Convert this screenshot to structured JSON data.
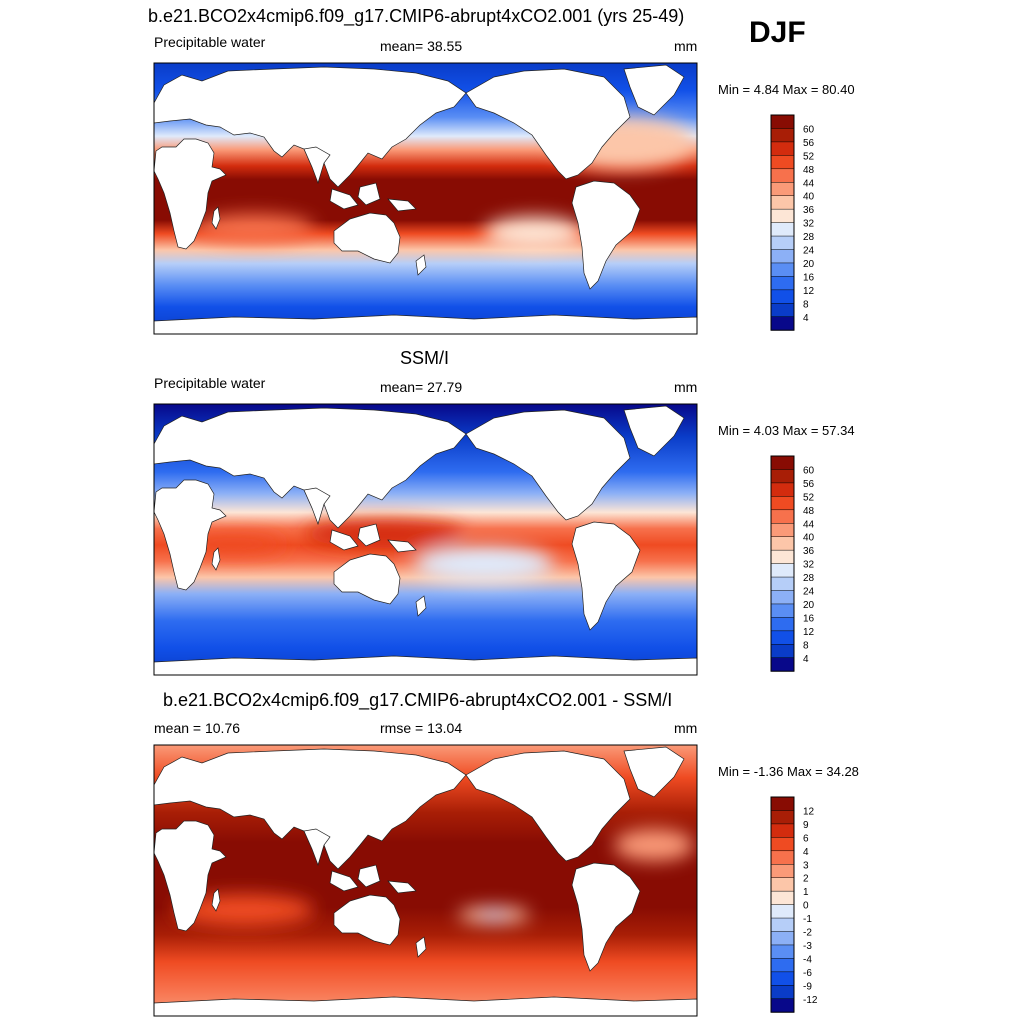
{
  "season": "DJF",
  "chart_data": [
    {
      "type": "heatmap",
      "title": "b.e21.BCO2x4cmip6.f09_g17.CMIP6-abrupt4xCO2.001 (yrs 25-49)",
      "left_label": "Precipitable water",
      "center_label": "mean=  38.55",
      "right_label": "mm",
      "minmax_label": "Min =   4.84 Max =  80.40",
      "mean": 38.55,
      "min": 4.84,
      "max": 80.4,
      "units": "mm",
      "colorbar": {
        "tick_labels": [
          "4",
          "8",
          "12",
          "16",
          "20",
          "24",
          "28",
          "32",
          "36",
          "40",
          "44",
          "48",
          "52",
          "56",
          "60"
        ],
        "colors": [
          "#08088a",
          "#0a3cc8",
          "#1150e8",
          "#2e6cf0",
          "#5a8ef4",
          "#8cb0f6",
          "#b6cef8",
          "#dfeafb",
          "#fde6d6",
          "#fcc6a9",
          "#fa9a78",
          "#f7714c",
          "#ef4b22",
          "#d32c0e",
          "#a81e06",
          "#880c03"
        ]
      },
      "field": "warm_tropics"
    },
    {
      "type": "heatmap",
      "title": "SSM/I",
      "left_label": "Precipitable water",
      "center_label": "mean=  27.79",
      "right_label": "mm",
      "minmax_label": "Min =   4.03 Max =  57.34",
      "mean": 27.79,
      "min": 4.03,
      "max": 57.34,
      "units": "mm",
      "colorbar": {
        "tick_labels": [
          "4",
          "8",
          "12",
          "16",
          "20",
          "24",
          "28",
          "32",
          "36",
          "40",
          "44",
          "48",
          "52",
          "56",
          "60"
        ],
        "colors": [
          "#08088a",
          "#0a3cc8",
          "#1150e8",
          "#2e6cf0",
          "#5a8ef4",
          "#8cb0f6",
          "#b6cef8",
          "#dfeafb",
          "#fde6d6",
          "#fcc6a9",
          "#fa9a78",
          "#f7714c",
          "#ef4b22",
          "#d32c0e",
          "#a81e06",
          "#880c03"
        ]
      },
      "field": "obs_tropics"
    },
    {
      "type": "heatmap",
      "title": "b.e21.BCO2x4cmip6.f09_g17.CMIP6-abrupt4xCO2.001 - SSM/I",
      "left_label": "mean =  10.76",
      "center_label": "rmse =  13.04",
      "right_label": "mm",
      "minmax_label": "Min =  -1.36 Max =  34.28",
      "mean": 10.76,
      "rmse": 13.04,
      "min": -1.36,
      "max": 34.28,
      "units": "mm",
      "colorbar": {
        "tick_labels": [
          "-12",
          "-9",
          "-6",
          "-4",
          "-3",
          "-2",
          "-1",
          "0",
          "1",
          "2",
          "3",
          "4",
          "6",
          "9",
          "12"
        ],
        "colors": [
          "#08088a",
          "#0a3cc8",
          "#1150e8",
          "#2e6cf0",
          "#5a8ef4",
          "#8cb0f6",
          "#b6cef8",
          "#dfeafb",
          "#fde6d6",
          "#fcc6a9",
          "#fa9a78",
          "#f7714c",
          "#ef4b22",
          "#d32c0e",
          "#a81e06",
          "#880c03"
        ]
      },
      "field": "difference"
    }
  ]
}
